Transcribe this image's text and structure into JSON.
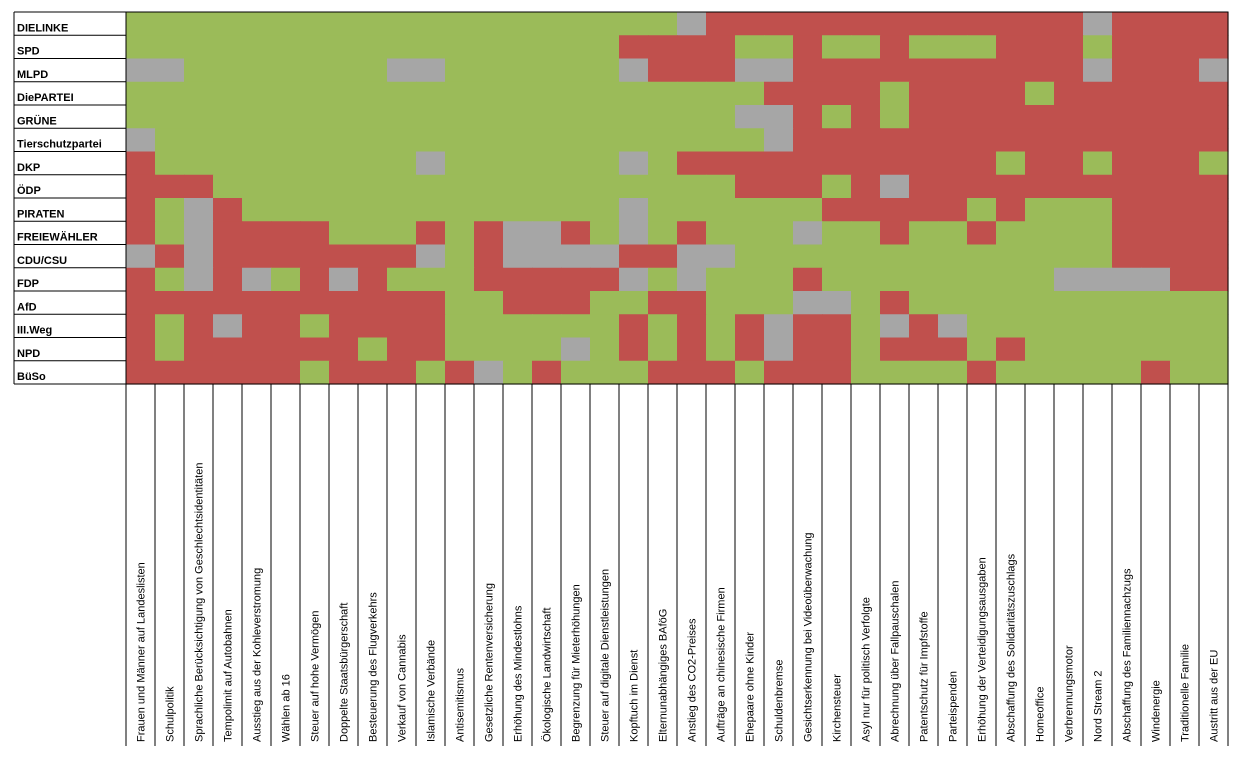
{
  "chart_data": {
    "type": "heatmap",
    "colors": {
      "A": "#9bbb59",
      "R": "#c0504d",
      "N": "#a6a6a6"
    },
    "parties": [
      "DIELINKE",
      "SPD",
      "MLPD",
      "DiePARTEI",
      "GRÜNE",
      "Tierschutzpartei",
      "DKP",
      "ÖDP",
      "PIRATEN",
      "FREIEWÄHLER",
      "CDU/CSU",
      "FDP",
      "AfD",
      "III.Weg",
      "NPD",
      "BüSo"
    ],
    "topics": [
      "Frauen und Männer auf Landeslisten",
      "Schulpolitik",
      "Sprachliche Berücksichtigung von Geschlechtsidentitäten",
      "Tempolimit auf Autobahnen",
      "Ausstieg aus der Kohleverstromung",
      "Wählen ab 16",
      "Steuer auf hohe Vermögen",
      "Doppelte Staatsbürgerschaft",
      "Besteuerung des Flugverkehrs",
      "Verkauf von Cannabis",
      "Islamische Verbände",
      "Antisemitismus",
      "Gesetzliche Rentenversicherung",
      "Erhöhung des Mindestlohns",
      "Ökologische Landwirtschaft",
      "Begrenzung für Mieterhöhungen",
      "Steuer auf digitale Dienstleistungen",
      "Kopftuch im Dienst",
      "Elternunabhängiges BAföG",
      "Anstieg des CO2-Preises",
      "Aufträge an chinesische Firmen",
      "Ehepaare ohne Kinder",
      "Schuldenbremse",
      "Gesichtserkennung bei Videoüberwachung",
      "Kirchensteuer",
      "Asyl nur für politisch Verfolgte",
      "Abrechnung über Fallpauschalen",
      "Patentschutz für Impfstoffe",
      "Parteispenden",
      "Erhöhung der Verteidigungsausgaben",
      "Abschaffung des Solidaritätszuschlags",
      "Homeoffice",
      "Verbrennungsmotor",
      "Nord Stream 2",
      "Abschaffung des Familiennachzugs",
      "Windenergie",
      "Traditionelle Familie",
      "Austritt aus der EU"
    ],
    "matrix": [
      "AAAAAAAAAAAAAAAAAAANRRRRRRRRRRRRRNRRRR",
      "AAAAAAAAAAAAAAAAARRRRAARAARAAARRRARRRR",
      "NNAAAAAAANNAAAAAANRRRNNRRRRRRRRRRNRRRN",
      "AAAAAAAAAAAAAAAAAAAAAARRRRARRRRARRRRRR",
      "AAAAAAAAAAAAAAAAAAAAANNRARARRRRRRRRRRR",
      "NAAAAAAAAAAAAAAAAAAAAANRRRRRRRRRRRRRRR",
      "RAAAAAAAAANAAAAAANARRRRRRRRRRRARRARRRA",
      "RRRAAAAAAAAAAAAAAAAAARRRARNRRRRRRRRRRR",
      "RANRAAAAAAAAAAAAANAAAAAARRRRRARAAARRRR",
      "RANRRRRAAARARNNRANARAAANAARAARAAAARRRR",
      "NRNRRRRRRRNARNNNNRRNNAAAAAAAAAAAAARRRR",
      "RANRNARNRAAARRRRRNANAAARAAAAAAAANNNNRR",
      "RRRRRRRRRRRAARRRAARRAAANNARAAAAAAAAAAA",
      "RARNRRARRRRAAAAAARARARNRRANRNAAAAAAAAA",
      "RARRRRRRARRAAAANARARARNRRARRRARAAAAAAA",
      "RRRRRRARRRARNARAAARRRARRRAAAARAAAAARAA"
    ]
  }
}
